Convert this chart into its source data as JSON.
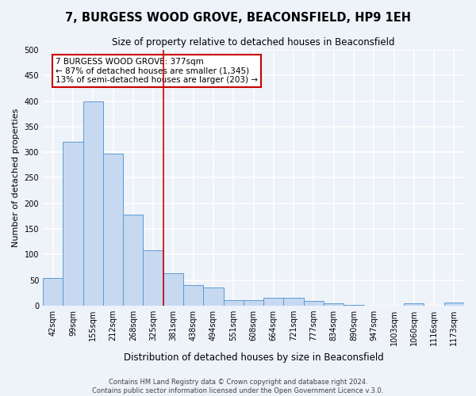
{
  "title": "7, BURGESS WOOD GROVE, BEACONSFIELD, HP9 1EH",
  "subtitle": "Size of property relative to detached houses in Beaconsfield",
  "xlabel": "Distribution of detached houses by size in Beaconsfield",
  "ylabel": "Number of detached properties",
  "bin_labels": [
    "42sqm",
    "99sqm",
    "155sqm",
    "212sqm",
    "268sqm",
    "325sqm",
    "381sqm",
    "438sqm",
    "494sqm",
    "551sqm",
    "608sqm",
    "664sqm",
    "721sqm",
    "777sqm",
    "834sqm",
    "890sqm",
    "947sqm",
    "1003sqm",
    "1060sqm",
    "1116sqm",
    "1173sqm"
  ],
  "bar_heights": [
    54,
    320,
    400,
    297,
    178,
    108,
    63,
    40,
    36,
    10,
    10,
    16,
    16,
    9,
    5,
    2,
    0,
    0,
    5,
    0,
    6
  ],
  "bar_color": "#c6d9f0",
  "bar_edge_color": "#5b9bd5",
  "vline_x": 6,
  "vline_color": "#cc0000",
  "ylim": [
    0,
    500
  ],
  "yticks": [
    0,
    50,
    100,
    150,
    200,
    250,
    300,
    350,
    400,
    450,
    500
  ],
  "annotation_text": "7 BURGESS WOOD GROVE: 377sqm\n← 87% of detached houses are smaller (1,345)\n13% of semi-detached houses are larger (203) →",
  "annotation_box_color": "#ffffff",
  "annotation_box_edge_color": "#cc0000",
  "footer_text": "Contains HM Land Registry data © Crown copyright and database right 2024.\nContains public sector information licensed under the Open Government Licence v.3.0.",
  "bg_color": "#eef2f9",
  "grid_color": "#ffffff",
  "title_fontsize": 10.5,
  "subtitle_fontsize": 8.5,
  "ylabel_fontsize": 8,
  "xlabel_fontsize": 8.5,
  "tick_fontsize": 7,
  "annot_fontsize": 7.5,
  "footer_fontsize": 6
}
